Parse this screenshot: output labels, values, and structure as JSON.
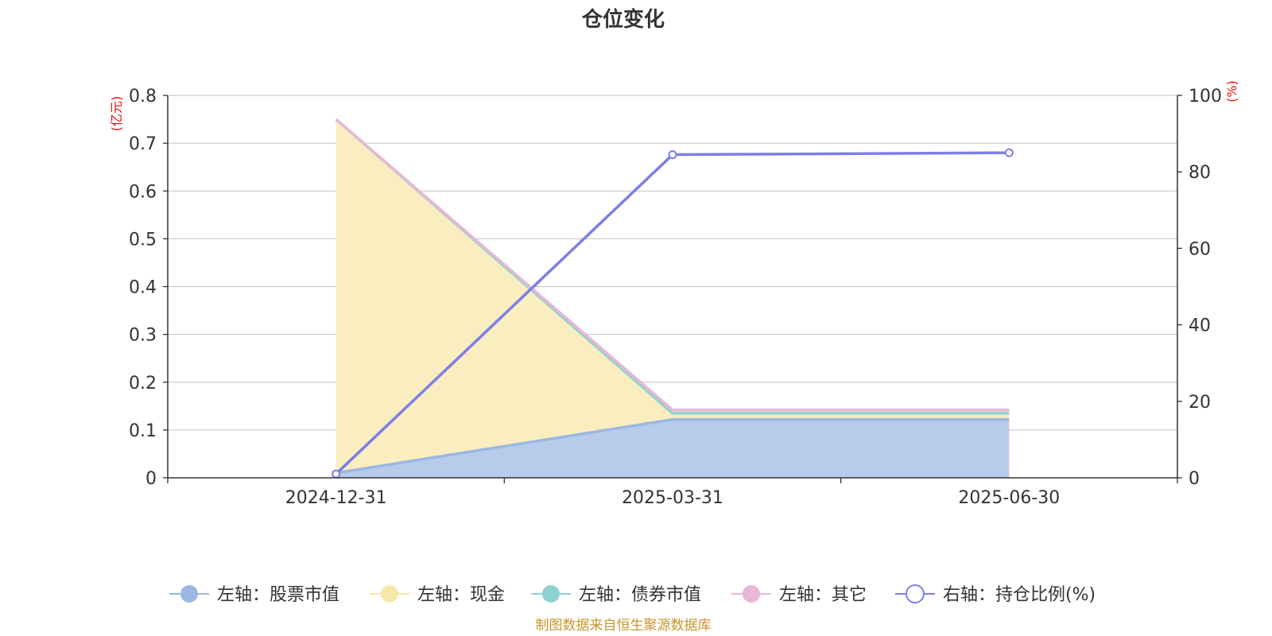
{
  "chart_data": {
    "type": "area",
    "title": "仓位变化",
    "categories": [
      "2024-12-31",
      "2025-03-31",
      "2025-06-30"
    ],
    "left_axis": {
      "unit": "(亿元)",
      "ylim": [
        0,
        0.8
      ],
      "ticks": [
        "0",
        "0.1",
        "0.2",
        "0.3",
        "0.4",
        "0.5",
        "0.6",
        "0.7",
        "0.8"
      ]
    },
    "right_axis": {
      "unit": "(%)",
      "ylim": [
        0,
        100
      ],
      "ticks": [
        "0",
        "20",
        "40",
        "60",
        "80",
        "100"
      ]
    },
    "series": [
      {
        "name": "左轴：股票市值",
        "axis": "left",
        "kind": "area",
        "stacked": true,
        "color": "#9bb8e3",
        "fill": "#b8cbea",
        "values": [
          0.01,
          0.122,
          0.122
        ]
      },
      {
        "name": "左轴：现金",
        "axis": "left",
        "kind": "area",
        "stacked": true,
        "color": "#f7e7a8",
        "fill": "#faedbf",
        "values": [
          0.74,
          0.013,
          0.013
        ]
      },
      {
        "name": "左轴：债券市值",
        "axis": "left",
        "kind": "area",
        "stacked": true,
        "color": "#8fd3d1",
        "fill": "#bfe5e4",
        "values": [
          0,
          0,
          0
        ]
      },
      {
        "name": "左轴：其它",
        "axis": "left",
        "kind": "area",
        "stacked": true,
        "color": "#e8b7d8",
        "fill": "#f2d6e8",
        "values": [
          0.0,
          0.007,
          0.007
        ]
      },
      {
        "name": "右轴：持仓比例(%)",
        "axis": "right",
        "kind": "line",
        "color": "#7b7fe6",
        "values": [
          1.0,
          84.5,
          85.0
        ]
      }
    ],
    "grid": true,
    "legend_position": "bottom"
  },
  "source_note": "制图数据来自恒生聚源数据库"
}
